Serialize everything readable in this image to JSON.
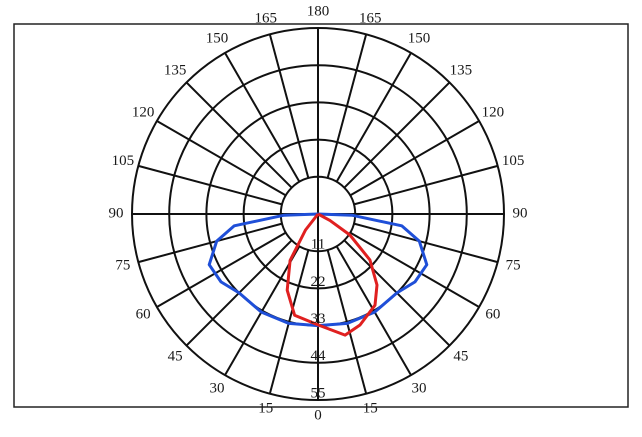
{
  "chart_data": {
    "type": "polar",
    "rlim": [
      0,
      55
    ],
    "rticks": [
      11,
      22,
      33,
      44,
      55
    ],
    "thetaticks": [
      0,
      15,
      30,
      45,
      60,
      75,
      90,
      105,
      120,
      135,
      150,
      165,
      180
    ],
    "series": [
      {
        "color": "#1f4fd8",
        "theta": [
          -90,
          -88,
          -82,
          -75,
          -65,
          -55,
          -45,
          -30,
          -15,
          0,
          15,
          30,
          45,
          55,
          65,
          75,
          82,
          88,
          90
        ],
        "values": [
          0,
          10,
          25,
          31,
          35.5,
          35,
          33,
          33.5,
          33.5,
          33,
          33.5,
          33.5,
          33,
          35,
          35.5,
          31,
          25,
          10,
          0
        ]
      },
      {
        "color": "#e02020",
        "theta": [
          -40,
          -38,
          -31,
          -22,
          -13,
          0,
          12.6,
          20.7,
          32,
          39.7,
          48.5,
          56.7,
          62,
          65
        ],
        "values": [
          0,
          6,
          16,
          24.3,
          30.7,
          32.8,
          36.7,
          35.1,
          31.8,
          27.3,
          20.5,
          11.3,
          4,
          0
        ]
      }
    ]
  }
}
